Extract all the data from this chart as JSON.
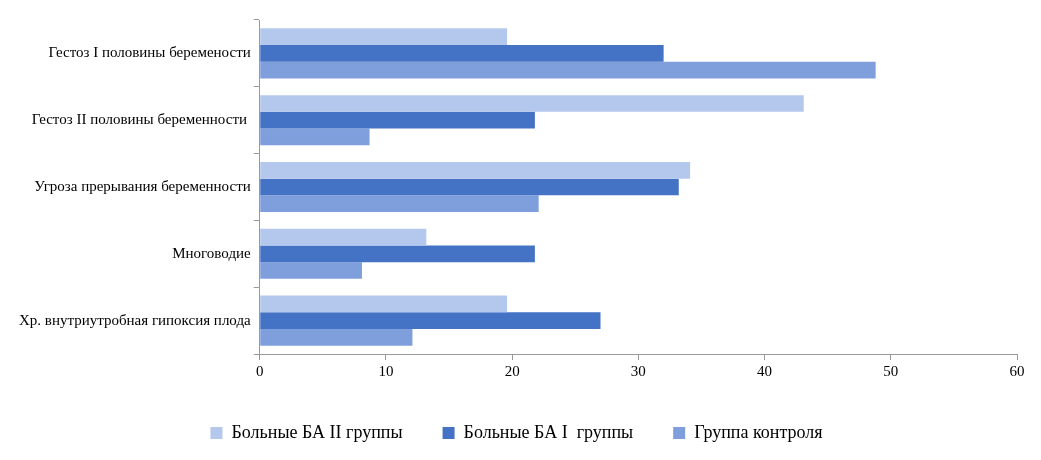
{
  "chart_data": {
    "type": "bar",
    "orientation": "horizontal",
    "categories": [
      "Гестоз I половины беремености",
      "Гестоз II половины беременности ",
      "Угроза прерывания беременности",
      "Многоводие",
      "Хр. внутриутробная гипоксия плода"
    ],
    "series": [
      {
        "name": "Больные БА II группы",
        "color": "#b4c7ec",
        "values": [
          19.6,
          43.1,
          34.1,
          13.2,
          19.6
        ]
      },
      {
        "name": "Больные БА I  группы",
        "color": "#4472c4",
        "values": [
          32.0,
          21.8,
          33.2,
          21.8,
          27.0
        ]
      },
      {
        "name": "Группа контроля",
        "color": "#7f9fdc",
        "values": [
          48.8,
          8.7,
          22.1,
          8.1,
          12.1
        ]
      }
    ],
    "xlim": [
      0,
      60
    ],
    "xticks": [
      0,
      10,
      20,
      30,
      40,
      50,
      60
    ],
    "grid": false,
    "legend": "bottom"
  }
}
